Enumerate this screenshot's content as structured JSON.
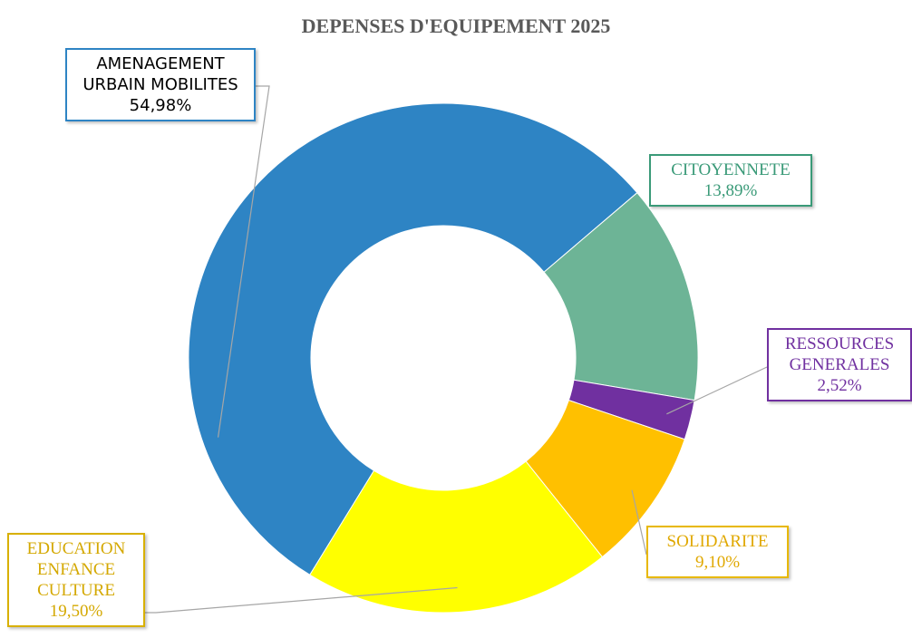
{
  "chart_data": {
    "type": "pie",
    "title": "DEPENSES D'EQUIPEMENT 2025",
    "categories": [
      "AMENAGEMENT URBAIN MOBILITES",
      "CITOYENNETE",
      "RESSOURCES GENERALES",
      "SOLIDARITE",
      "EDUCATION ENFANCE CULTURE"
    ],
    "values": [
      54.98,
      13.89,
      2.52,
      9.1,
      19.5
    ],
    "value_labels": [
      "54,98%",
      "13,89%",
      "2,52%",
      "9,10%",
      "19,50%"
    ],
    "colors": [
      "#2e84c4",
      "#6db496",
      "#7030a0",
      "#ffc000",
      "#ffff00"
    ]
  }
}
